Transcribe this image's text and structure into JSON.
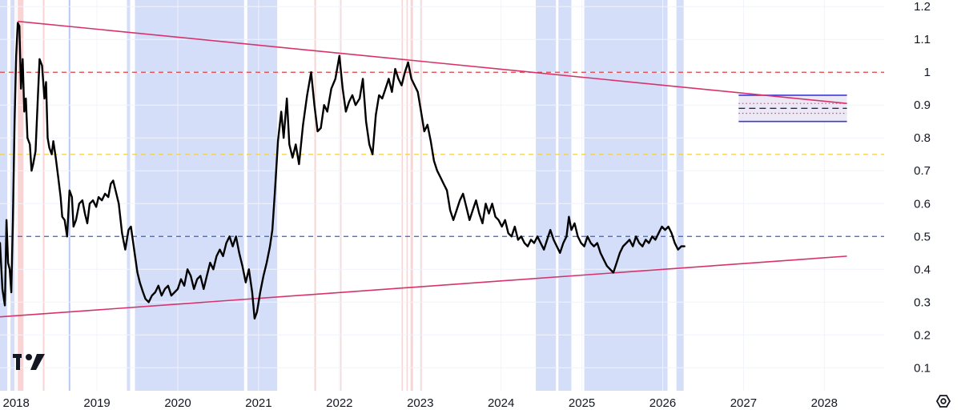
{
  "chart_data": {
    "type": "line",
    "title": "",
    "xlabel": "",
    "ylabel": "",
    "xlim": [
      2017.8,
      2028.74
    ],
    "ylim": [
      0.03,
      1.22
    ],
    "grid": true,
    "x_ticks": [
      "2018",
      "2019",
      "2020",
      "2021",
      "2022",
      "2023",
      "2024",
      "2025",
      "2026",
      "2027",
      "2028"
    ],
    "y_ticks": [
      "0.1",
      "0.2",
      "0.3",
      "0.4",
      "0.5",
      "0.6",
      "0.7",
      "0.8",
      "0.9",
      "1",
      "1.1",
      "1.2"
    ],
    "series": [
      {
        "name": "",
        "color": "#000000",
        "points": [
          [
            2017.8,
            0.48
          ],
          [
            2017.83,
            0.34
          ],
          [
            2017.86,
            0.29
          ],
          [
            2017.88,
            0.55
          ],
          [
            2017.9,
            0.42
          ],
          [
            2017.92,
            0.4
          ],
          [
            2017.94,
            0.33
          ],
          [
            2017.96,
            0.55
          ],
          [
            2017.98,
            0.85
          ],
          [
            2018.0,
            1.05
          ],
          [
            2018.02,
            1.15
          ],
          [
            2018.04,
            1.14
          ],
          [
            2018.06,
            0.95
          ],
          [
            2018.08,
            1.04
          ],
          [
            2018.1,
            0.88
          ],
          [
            2018.12,
            0.92
          ],
          [
            2018.14,
            0.8
          ],
          [
            2018.17,
            0.78
          ],
          [
            2018.19,
            0.7
          ],
          [
            2018.21,
            0.72
          ],
          [
            2018.24,
            0.76
          ],
          [
            2018.27,
            0.93
          ],
          [
            2018.29,
            1.04
          ],
          [
            2018.32,
            1.02
          ],
          [
            2018.35,
            0.92
          ],
          [
            2018.37,
            0.97
          ],
          [
            2018.39,
            0.8
          ],
          [
            2018.41,
            0.77
          ],
          [
            2018.44,
            0.75
          ],
          [
            2018.46,
            0.79
          ],
          [
            2018.49,
            0.74
          ],
          [
            2018.52,
            0.68
          ],
          [
            2018.55,
            0.62
          ],
          [
            2018.57,
            0.56
          ],
          [
            2018.6,
            0.55
          ],
          [
            2018.63,
            0.5
          ],
          [
            2018.66,
            0.64
          ],
          [
            2018.69,
            0.62
          ],
          [
            2018.71,
            0.53
          ],
          [
            2018.74,
            0.55
          ],
          [
            2018.78,
            0.6
          ],
          [
            2018.82,
            0.61
          ],
          [
            2018.85,
            0.57
          ],
          [
            2018.88,
            0.54
          ],
          [
            2018.91,
            0.6
          ],
          [
            2018.95,
            0.61
          ],
          [
            2018.99,
            0.59
          ],
          [
            2019.02,
            0.62
          ],
          [
            2019.06,
            0.61
          ],
          [
            2019.1,
            0.63
          ],
          [
            2019.14,
            0.62
          ],
          [
            2019.17,
            0.66
          ],
          [
            2019.2,
            0.67
          ],
          [
            2019.24,
            0.63
          ],
          [
            2019.27,
            0.6
          ],
          [
            2019.31,
            0.51
          ],
          [
            2019.35,
            0.46
          ],
          [
            2019.39,
            0.52
          ],
          [
            2019.42,
            0.53
          ],
          [
            2019.46,
            0.46
          ],
          [
            2019.5,
            0.39
          ],
          [
            2019.53,
            0.36
          ],
          [
            2019.57,
            0.33
          ],
          [
            2019.6,
            0.31
          ],
          [
            2019.64,
            0.3
          ],
          [
            2019.68,
            0.32
          ],
          [
            2019.72,
            0.33
          ],
          [
            2019.76,
            0.35
          ],
          [
            2019.8,
            0.32
          ],
          [
            2019.84,
            0.34
          ],
          [
            2019.88,
            0.35
          ],
          [
            2019.92,
            0.32
          ],
          [
            2019.96,
            0.33
          ],
          [
            2020.0,
            0.34
          ],
          [
            2020.04,
            0.37
          ],
          [
            2020.08,
            0.35
          ],
          [
            2020.12,
            0.4
          ],
          [
            2020.16,
            0.38
          ],
          [
            2020.2,
            0.34
          ],
          [
            2020.24,
            0.37
          ],
          [
            2020.28,
            0.38
          ],
          [
            2020.32,
            0.34
          ],
          [
            2020.36,
            0.38
          ],
          [
            2020.4,
            0.42
          ],
          [
            2020.44,
            0.4
          ],
          [
            2020.48,
            0.44
          ],
          [
            2020.52,
            0.46
          ],
          [
            2020.56,
            0.44
          ],
          [
            2020.6,
            0.48
          ],
          [
            2020.64,
            0.5
          ],
          [
            2020.68,
            0.47
          ],
          [
            2020.72,
            0.5
          ],
          [
            2020.76,
            0.45
          ],
          [
            2020.8,
            0.41
          ],
          [
            2020.84,
            0.36
          ],
          [
            2020.88,
            0.4
          ],
          [
            2020.92,
            0.33
          ],
          [
            2020.95,
            0.25
          ],
          [
            2020.98,
            0.27
          ],
          [
            2021.02,
            0.33
          ],
          [
            2021.06,
            0.38
          ],
          [
            2021.1,
            0.42
          ],
          [
            2021.14,
            0.47
          ],
          [
            2021.17,
            0.52
          ],
          [
            2021.2,
            0.63
          ],
          [
            2021.24,
            0.79
          ],
          [
            2021.28,
            0.88
          ],
          [
            2021.31,
            0.8
          ],
          [
            2021.35,
            0.92
          ],
          [
            2021.38,
            0.78
          ],
          [
            2021.42,
            0.74
          ],
          [
            2021.46,
            0.78
          ],
          [
            2021.5,
            0.72
          ],
          [
            2021.55,
            0.84
          ],
          [
            2021.6,
            0.93
          ],
          [
            2021.65,
            1.0
          ],
          [
            2021.69,
            0.9
          ],
          [
            2021.73,
            0.82
          ],
          [
            2021.77,
            0.83
          ],
          [
            2021.81,
            0.9
          ],
          [
            2021.85,
            0.88
          ],
          [
            2021.9,
            0.95
          ],
          [
            2021.95,
            0.98
          ],
          [
            2022.0,
            1.05
          ],
          [
            2022.04,
            0.95
          ],
          [
            2022.08,
            0.88
          ],
          [
            2022.12,
            0.91
          ],
          [
            2022.16,
            0.93
          ],
          [
            2022.2,
            0.9
          ],
          [
            2022.25,
            0.92
          ],
          [
            2022.29,
            0.98
          ],
          [
            2022.33,
            0.85
          ],
          [
            2022.37,
            0.78
          ],
          [
            2022.41,
            0.75
          ],
          [
            2022.45,
            0.87
          ],
          [
            2022.49,
            0.93
          ],
          [
            2022.53,
            0.92
          ],
          [
            2022.57,
            0.95
          ],
          [
            2022.61,
            0.98
          ],
          [
            2022.65,
            0.94
          ],
          [
            2022.69,
            1.01
          ],
          [
            2022.73,
            0.98
          ],
          [
            2022.77,
            0.96
          ],
          [
            2022.81,
            1.0
          ],
          [
            2022.85,
            1.03
          ],
          [
            2022.89,
            0.98
          ],
          [
            2022.93,
            0.96
          ],
          [
            2022.97,
            0.94
          ],
          [
            2023.01,
            0.88
          ],
          [
            2023.05,
            0.82
          ],
          [
            2023.09,
            0.84
          ],
          [
            2023.13,
            0.79
          ],
          [
            2023.17,
            0.73
          ],
          [
            2023.21,
            0.7
          ],
          [
            2023.25,
            0.68
          ],
          [
            2023.29,
            0.66
          ],
          [
            2023.33,
            0.64
          ],
          [
            2023.37,
            0.58
          ],
          [
            2023.41,
            0.55
          ],
          [
            2023.45,
            0.58
          ],
          [
            2023.49,
            0.61
          ],
          [
            2023.53,
            0.63
          ],
          [
            2023.57,
            0.59
          ],
          [
            2023.61,
            0.55
          ],
          [
            2023.65,
            0.58
          ],
          [
            2023.69,
            0.61
          ],
          [
            2023.73,
            0.57
          ],
          [
            2023.77,
            0.54
          ],
          [
            2023.81,
            0.6
          ],
          [
            2023.85,
            0.57
          ],
          [
            2023.89,
            0.6
          ],
          [
            2023.93,
            0.56
          ],
          [
            2023.97,
            0.55
          ],
          [
            2024.01,
            0.53
          ],
          [
            2024.05,
            0.55
          ],
          [
            2024.09,
            0.51
          ],
          [
            2024.13,
            0.5
          ],
          [
            2024.17,
            0.53
          ],
          [
            2024.21,
            0.49
          ],
          [
            2024.25,
            0.5
          ],
          [
            2024.29,
            0.48
          ],
          [
            2024.33,
            0.47
          ],
          [
            2024.37,
            0.49
          ],
          [
            2024.41,
            0.48
          ],
          [
            2024.45,
            0.5
          ],
          [
            2024.49,
            0.48
          ],
          [
            2024.53,
            0.46
          ],
          [
            2024.57,
            0.49
          ],
          [
            2024.61,
            0.52
          ],
          [
            2024.65,
            0.49
          ],
          [
            2024.69,
            0.47
          ],
          [
            2024.73,
            0.45
          ],
          [
            2024.77,
            0.48
          ],
          [
            2024.81,
            0.5
          ],
          [
            2024.84,
            0.56
          ],
          [
            2024.87,
            0.52
          ],
          [
            2024.91,
            0.54
          ],
          [
            2024.95,
            0.5
          ],
          [
            2024.99,
            0.48
          ],
          [
            2025.03,
            0.47
          ],
          [
            2025.07,
            0.5
          ],
          [
            2025.11,
            0.48
          ],
          [
            2025.15,
            0.47
          ],
          [
            2025.19,
            0.48
          ],
          [
            2025.23,
            0.45
          ],
          [
            2025.27,
            0.43
          ],
          [
            2025.31,
            0.41
          ],
          [
            2025.35,
            0.4
          ],
          [
            2025.39,
            0.39
          ],
          [
            2025.43,
            0.42
          ],
          [
            2025.47,
            0.45
          ],
          [
            2025.51,
            0.47
          ],
          [
            2025.55,
            0.48
          ],
          [
            2025.59,
            0.49
          ],
          [
            2025.63,
            0.47
          ],
          [
            2025.67,
            0.5
          ],
          [
            2025.71,
            0.48
          ],
          [
            2025.75,
            0.47
          ],
          [
            2025.79,
            0.49
          ],
          [
            2025.83,
            0.48
          ],
          [
            2025.87,
            0.5
          ],
          [
            2025.91,
            0.49
          ],
          [
            2025.95,
            0.51
          ],
          [
            2025.99,
            0.53
          ],
          [
            2026.03,
            0.52
          ],
          [
            2026.07,
            0.53
          ],
          [
            2026.11,
            0.51
          ],
          [
            2026.15,
            0.48
          ],
          [
            2026.19,
            0.46
          ],
          [
            2026.23,
            0.47
          ],
          [
            2026.27,
            0.47
          ]
        ]
      }
    ],
    "trendlines": [
      {
        "color": "#d6336c",
        "start": [
          2018.02,
          1.155
        ],
        "end": [
          2028.28,
          0.905
        ]
      },
      {
        "color": "#d6336c",
        "start": [
          2017.8,
          0.255
        ],
        "end": [
          2028.28,
          0.44
        ]
      }
    ],
    "horizontal_lines": [
      {
        "y": 1.0,
        "color": "#e04040",
        "style": "dashed"
      },
      {
        "y": 0.75,
        "color": "#f2d04a",
        "style": "dashed"
      },
      {
        "y": 0.5,
        "color": "#3d5fc4",
        "style": "dashed"
      }
    ],
    "blue_bands": [
      [
        2017.8,
        2017.89
      ],
      [
        2017.93,
        2017.98
      ],
      [
        2019.37,
        2019.41
      ],
      [
        2019.47,
        2020.82
      ],
      [
        2020.86,
        2021.23
      ],
      [
        2024.43,
        2024.68
      ],
      [
        2024.71,
        2024.87
      ],
      [
        2025.03,
        2026.06
      ],
      [
        2026.17,
        2026.26
      ]
    ],
    "thin_blue_lines": [
      2018.66
    ],
    "red_bands": [
      [
        2018.02,
        2018.09
      ],
      [
        2018.33,
        2018.35
      ],
      [
        2021.69,
        2021.71
      ],
      [
        2022.01,
        2022.02
      ],
      [
        2022.77,
        2022.78
      ],
      [
        2022.83,
        2022.84
      ],
      [
        2022.88,
        2022.91
      ],
      [
        2023.0,
        2023.02
      ]
    ],
    "target_box": {
      "x_range": [
        2026.94,
        2028.28
      ],
      "solid_lines": [
        {
          "y": 0.93,
          "color": "#3b3bd6"
        },
        {
          "y": 0.85,
          "color": "#3b3bd6"
        }
      ],
      "dashed_lines": [
        {
          "y": 0.89,
          "color": "#2b2b5a"
        }
      ],
      "dotted_lines": [
        {
          "y": 0.905,
          "color": "#c94a7a"
        },
        {
          "y": 0.875,
          "color": "#c94a7a"
        }
      ],
      "fill": "#ece8f5"
    }
  },
  "logo": "TV"
}
